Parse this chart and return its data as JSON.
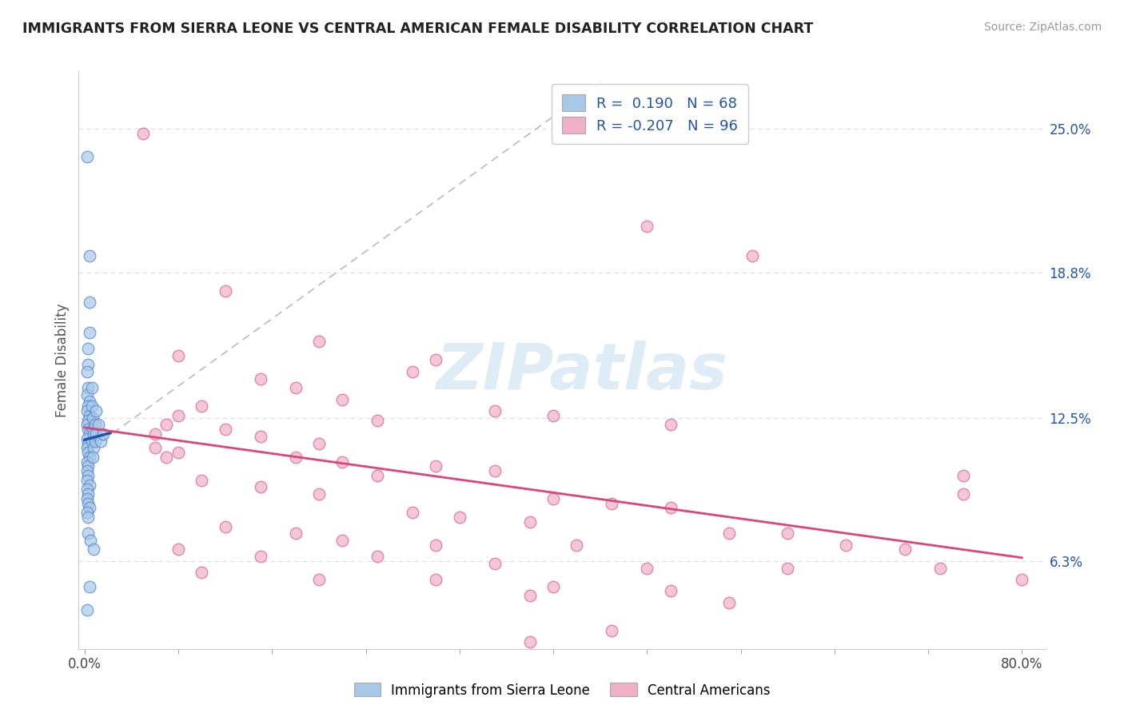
{
  "title": "IMMIGRANTS FROM SIERRA LEONE VS CENTRAL AMERICAN FEMALE DISABILITY CORRELATION CHART",
  "source": "Source: ZipAtlas.com",
  "ylabel": "Female Disability",
  "ytick_labels": [
    "6.3%",
    "12.5%",
    "18.8%",
    "25.0%"
  ],
  "ytick_values": [
    0.063,
    0.125,
    0.188,
    0.25
  ],
  "xtick_labels": [
    "0.0%",
    "80.0%"
  ],
  "xtick_values": [
    0.0,
    0.8
  ],
  "xlim": [
    -0.005,
    0.82
  ],
  "ylim": [
    0.025,
    0.275
  ],
  "watermark": "ZIPatlas",
  "blue_color": "#a8c8e8",
  "blue_edge_color": "#5588cc",
  "pink_color": "#f0b0c8",
  "pink_edge_color": "#d86090",
  "blue_line_color": "#2255aa",
  "pink_line_color": "#dd4477",
  "legend_text_color": "#2255aa",
  "title_color": "#222222",
  "source_color": "#999999",
  "grid_color": "#dddddd",
  "ref_line_color": "#bbbbbb",
  "blue_scatter": [
    [
      0.002,
      0.238
    ],
    [
      0.004,
      0.195
    ],
    [
      0.004,
      0.175
    ],
    [
      0.004,
      0.162
    ],
    [
      0.003,
      0.155
    ],
    [
      0.003,
      0.148
    ],
    [
      0.002,
      0.145
    ],
    [
      0.003,
      0.138
    ],
    [
      0.002,
      0.135
    ],
    [
      0.004,
      0.132
    ],
    [
      0.003,
      0.13
    ],
    [
      0.002,
      0.128
    ],
    [
      0.004,
      0.126
    ],
    [
      0.003,
      0.124
    ],
    [
      0.002,
      0.122
    ],
    [
      0.003,
      0.12
    ],
    [
      0.004,
      0.118
    ],
    [
      0.002,
      0.116
    ],
    [
      0.003,
      0.114
    ],
    [
      0.002,
      0.112
    ],
    [
      0.003,
      0.11
    ],
    [
      0.004,
      0.108
    ],
    [
      0.002,
      0.106
    ],
    [
      0.003,
      0.104
    ],
    [
      0.002,
      0.102
    ],
    [
      0.003,
      0.1
    ],
    [
      0.002,
      0.098
    ],
    [
      0.004,
      0.096
    ],
    [
      0.002,
      0.094
    ],
    [
      0.003,
      0.092
    ],
    [
      0.002,
      0.09
    ],
    [
      0.003,
      0.088
    ],
    [
      0.004,
      0.086
    ],
    [
      0.002,
      0.084
    ],
    [
      0.003,
      0.082
    ],
    [
      0.006,
      0.138
    ],
    [
      0.006,
      0.13
    ],
    [
      0.007,
      0.125
    ],
    [
      0.007,
      0.12
    ],
    [
      0.006,
      0.115
    ],
    [
      0.008,
      0.118
    ],
    [
      0.008,
      0.112
    ],
    [
      0.007,
      0.108
    ],
    [
      0.009,
      0.122
    ],
    [
      0.009,
      0.115
    ],
    [
      0.01,
      0.128
    ],
    [
      0.01,
      0.118
    ],
    [
      0.012,
      0.122
    ],
    [
      0.014,
      0.115
    ],
    [
      0.016,
      0.118
    ],
    [
      0.003,
      0.075
    ],
    [
      0.005,
      0.072
    ],
    [
      0.008,
      0.068
    ],
    [
      0.004,
      0.052
    ],
    [
      0.002,
      0.042
    ]
  ],
  "pink_scatter": [
    [
      0.05,
      0.248
    ],
    [
      0.48,
      0.208
    ],
    [
      0.57,
      0.195
    ],
    [
      0.12,
      0.18
    ],
    [
      0.2,
      0.158
    ],
    [
      0.08,
      0.152
    ],
    [
      0.3,
      0.15
    ],
    [
      0.28,
      0.145
    ],
    [
      0.15,
      0.142
    ],
    [
      0.18,
      0.138
    ],
    [
      0.22,
      0.133
    ],
    [
      0.1,
      0.13
    ],
    [
      0.35,
      0.128
    ],
    [
      0.4,
      0.126
    ],
    [
      0.08,
      0.126
    ],
    [
      0.25,
      0.124
    ],
    [
      0.5,
      0.122
    ],
    [
      0.12,
      0.12
    ],
    [
      0.15,
      0.117
    ],
    [
      0.2,
      0.114
    ],
    [
      0.07,
      0.122
    ],
    [
      0.06,
      0.118
    ],
    [
      0.06,
      0.112
    ],
    [
      0.07,
      0.108
    ],
    [
      0.08,
      0.11
    ],
    [
      0.18,
      0.108
    ],
    [
      0.22,
      0.106
    ],
    [
      0.3,
      0.104
    ],
    [
      0.35,
      0.102
    ],
    [
      0.25,
      0.1
    ],
    [
      0.1,
      0.098
    ],
    [
      0.15,
      0.095
    ],
    [
      0.2,
      0.092
    ],
    [
      0.4,
      0.09
    ],
    [
      0.45,
      0.088
    ],
    [
      0.5,
      0.086
    ],
    [
      0.28,
      0.084
    ],
    [
      0.32,
      0.082
    ],
    [
      0.38,
      0.08
    ],
    [
      0.12,
      0.078
    ],
    [
      0.18,
      0.075
    ],
    [
      0.55,
      0.075
    ],
    [
      0.22,
      0.072
    ],
    [
      0.3,
      0.07
    ],
    [
      0.42,
      0.07
    ],
    [
      0.08,
      0.068
    ],
    [
      0.15,
      0.065
    ],
    [
      0.25,
      0.065
    ],
    [
      0.35,
      0.062
    ],
    [
      0.48,
      0.06
    ],
    [
      0.6,
      0.06
    ],
    [
      0.1,
      0.058
    ],
    [
      0.2,
      0.055
    ],
    [
      0.3,
      0.055
    ],
    [
      0.4,
      0.052
    ],
    [
      0.5,
      0.05
    ],
    [
      0.38,
      0.048
    ],
    [
      0.55,
      0.045
    ],
    [
      0.45,
      0.033
    ],
    [
      0.38,
      0.028
    ],
    [
      0.6,
      0.075
    ],
    [
      0.65,
      0.07
    ],
    [
      0.7,
      0.068
    ],
    [
      0.75,
      0.1
    ],
    [
      0.75,
      0.092
    ],
    [
      0.73,
      0.06
    ],
    [
      0.8,
      0.055
    ]
  ]
}
